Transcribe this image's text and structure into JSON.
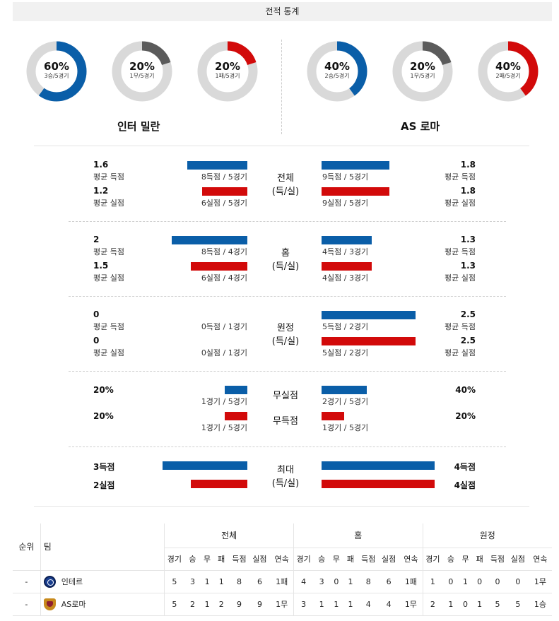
{
  "header": {
    "title": "전적 통계"
  },
  "colors": {
    "blue": "#0a5ea8",
    "red": "#d20a0a",
    "gray": "#5b5b5b",
    "track": "#d9d9d9"
  },
  "donuts": [
    {
      "pct": "60%",
      "sub": "3승/5경기",
      "fraction": 0.6,
      "color": "#0a5ea8"
    },
    {
      "pct": "20%",
      "sub": "1무/5경기",
      "fraction": 0.2,
      "color": "#5b5b5b"
    },
    {
      "pct": "20%",
      "sub": "1패/5경기",
      "fraction": 0.2,
      "color": "#d20a0a"
    },
    {
      "pct": "40%",
      "sub": "2승/5경기",
      "fraction": 0.4,
      "color": "#0a5ea8"
    },
    {
      "pct": "20%",
      "sub": "1무/5경기",
      "fraction": 0.2,
      "color": "#5b5b5b"
    },
    {
      "pct": "40%",
      "sub": "2패/5경기",
      "fraction": 0.4,
      "color": "#d20a0a"
    }
  ],
  "teams": {
    "home": "인터 밀란",
    "away": "AS 로마"
  },
  "sections": {
    "total": {
      "label1": "전체",
      "label2": "(득/실)",
      "home_scored": {
        "value": "1.6",
        "label": "평균 득점",
        "caption": "8득점 / 5경기",
        "ratio": 0.533
      },
      "home_conceded": {
        "value": "1.2",
        "label": "평균 실점",
        "caption": "6실점 / 5경기",
        "ratio": 0.4
      },
      "away_scored": {
        "value": "1.8",
        "label": "평균 득점",
        "caption": "9득점 / 5경기",
        "ratio": 0.6
      },
      "away_conceded": {
        "value": "1.8",
        "label": "평균 실점",
        "caption": "9실점 / 5경기",
        "ratio": 0.6
      }
    },
    "home": {
      "label1": "홈",
      "label2": "(득/실)",
      "home_scored": {
        "value": "2",
        "label": "평균 득점",
        "caption": "8득점 / 4경기",
        "ratio": 0.667
      },
      "home_conceded": {
        "value": "1.5",
        "label": "평균 실점",
        "caption": "6실점 / 4경기",
        "ratio": 0.5
      },
      "away_scored": {
        "value": "1.3",
        "label": "평균 득점",
        "caption": "4득점 / 3경기",
        "ratio": 0.444
      },
      "away_conceded": {
        "value": "1.3",
        "label": "평균 실점",
        "caption": "4실점 / 3경기",
        "ratio": 0.444
      }
    },
    "away": {
      "label1": "원정",
      "label2": "(득/실)",
      "home_scored": {
        "value": "0",
        "label": "평균 득점",
        "caption": "0득점 / 1경기",
        "ratio": 0
      },
      "home_conceded": {
        "value": "0",
        "label": "평균 실점",
        "caption": "0실점 / 1경기",
        "ratio": 0
      },
      "away_scored": {
        "value": "2.5",
        "label": "평균 득점",
        "caption": "5득점 / 2경기",
        "ratio": 0.833
      },
      "away_conceded": {
        "value": "2.5",
        "label": "평균 실점",
        "caption": "5실점 / 2경기",
        "ratio": 0.833
      }
    },
    "clean": {
      "label_clean": "무실점",
      "label_nogoal": "무득점",
      "home_clean": {
        "value": "20%",
        "caption": "1경기 / 5경기",
        "ratio": 0.2
      },
      "home_nogoal": {
        "value": "20%",
        "caption": "1경기 / 5경기",
        "ratio": 0.2
      },
      "away_clean": {
        "value": "40%",
        "caption": "2경기 / 5경기",
        "ratio": 0.4
      },
      "away_nogoal": {
        "value": "20%",
        "caption": "1경기 / 5경기",
        "ratio": 0.2
      }
    },
    "max": {
      "label1": "최대",
      "label2": "(득/실)",
      "home_scored": {
        "value": "3득점",
        "ratio": 0.75
      },
      "home_conceded": {
        "value": "2실점",
        "ratio": 0.5
      },
      "away_scored": {
        "value": "4득점",
        "ratio": 1.0
      },
      "away_conceded": {
        "value": "4실점",
        "ratio": 1.0
      }
    }
  },
  "standings": {
    "col_rank": "순위",
    "col_team": "팀",
    "groups": [
      "전체",
      "홈",
      "원정"
    ],
    "subcols": [
      "경기",
      "승",
      "무",
      "패",
      "득점",
      "실점",
      "연속"
    ],
    "rows": [
      {
        "rank": "-",
        "team": "인테르",
        "badge": "inter",
        "total": [
          "5",
          "3",
          "1",
          "1",
          "8",
          "6",
          "1패"
        ],
        "home": [
          "4",
          "3",
          "0",
          "1",
          "8",
          "6",
          "1패"
        ],
        "away": [
          "1",
          "0",
          "1",
          "0",
          "0",
          "0",
          "1무"
        ]
      },
      {
        "rank": "-",
        "team": "AS로마",
        "badge": "roma",
        "total": [
          "5",
          "2",
          "1",
          "2",
          "9",
          "9",
          "1무"
        ],
        "home": [
          "3",
          "1",
          "1",
          "1",
          "4",
          "4",
          "1무"
        ],
        "away": [
          "2",
          "1",
          "0",
          "1",
          "5",
          "5",
          "1승"
        ]
      }
    ]
  }
}
